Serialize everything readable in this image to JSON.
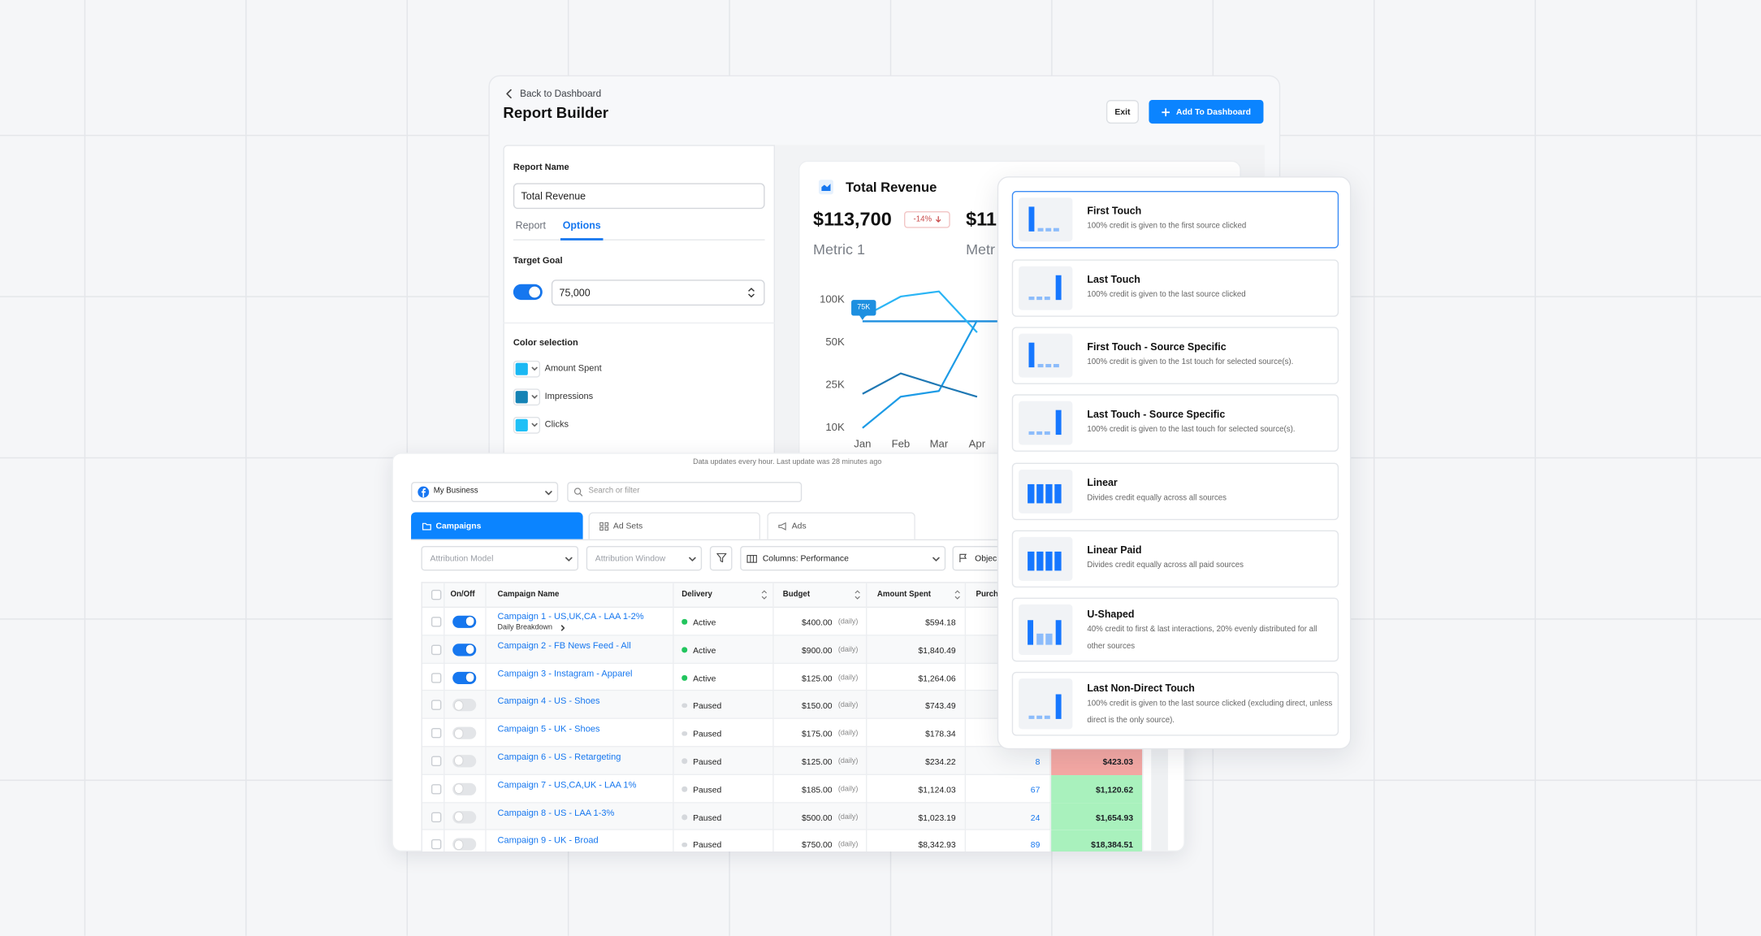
{
  "header": {
    "back_link": "Back to Dashboard",
    "title": "Report Builder",
    "exit_button": "Exit",
    "add_button": "Add To Dashboard"
  },
  "settings": {
    "report_name_label": "Report Name",
    "report_name_value": "Total Revenue",
    "tabs": [
      "Report",
      "Options"
    ],
    "active_tab": 1,
    "target_goal_label": "Target Goal",
    "target_goal_enabled": true,
    "target_goal_value": "75,000",
    "color_selection_label": "Color selection",
    "colors": [
      {
        "name": "Amount Spent",
        "color": "#1ab8f3"
      },
      {
        "name": "Impressions",
        "color": "#1583b5"
      },
      {
        "name": "Clicks",
        "color": "#20c0f6"
      }
    ]
  },
  "chart": {
    "title": "Total Revenue",
    "metrics": [
      {
        "value": "$113,700",
        "change": "-14%",
        "label": "Metric 1"
      },
      {
        "value": "$11",
        "label": "Metr"
      }
    ],
    "categories": [
      "Jan",
      "Feb",
      "Mar",
      "Apr"
    ],
    "yticks": [
      {
        "value": 10000,
        "label": "10K"
      },
      {
        "value": 25000,
        "label": "25K"
      },
      {
        "value": 50000,
        "label": "50K"
      },
      {
        "value": 100000,
        "label": "100K"
      }
    ],
    "target": {
      "value": 75000,
      "label": "75K",
      "color": "#1d8fe0"
    },
    "series": [
      {
        "color": "#2bb5f5",
        "values": [
          80000,
          104000,
          110000,
          62000
        ]
      },
      {
        "color": "#1d9be6",
        "values": [
          10000,
          21000,
          23000,
          76000
        ]
      },
      {
        "color": "#1f78b4",
        "values": [
          22000,
          32000,
          25000,
          21000
        ]
      }
    ]
  },
  "table": {
    "notice": "Data updates every hour. Last update was 28 minutes ago",
    "account": "My Business",
    "search_placeholder": "Search or filter",
    "tabs": [
      "Campaigns",
      "Ad Sets",
      "Ads"
    ],
    "active_tab": 0,
    "filters": [
      "Attribution Model",
      "Attribution Window",
      "Columns: Performance",
      "Objec"
    ],
    "columns": [
      "On/Off",
      "Campaign Name",
      "Delivery",
      "Budget",
      "Amount Spent",
      "Purch"
    ],
    "rows": [
      {
        "enabled": true,
        "name": "Campaign 1 - US,UK,CA - LAA 1-2%",
        "sub": "Daily Breakdown",
        "delivery": "Active",
        "budget": "$400.00",
        "period": "(daily)",
        "spent": "$594.18"
      },
      {
        "enabled": true,
        "name": "Campaign 2 - FB News Feed - All",
        "delivery": "Active",
        "budget": "$900.00",
        "period": "(daily)",
        "spent": "$1,840.49"
      },
      {
        "enabled": true,
        "name": "Campaign 3 - Instagram - Apparel",
        "delivery": "Active",
        "budget": "$125.00",
        "period": "(daily)",
        "spent": "$1,264.06"
      },
      {
        "enabled": false,
        "name": "Campaign 4 - US - Shoes",
        "delivery": "Paused",
        "budget": "$150.00",
        "period": "(daily)",
        "spent": "$743.49"
      },
      {
        "enabled": false,
        "name": "Campaign 5 - UK - Shoes",
        "delivery": "Paused",
        "budget": "$175.00",
        "period": "(daily)",
        "spent": "$178.34"
      },
      {
        "enabled": false,
        "name": "Campaign 6 - US - Retargeting",
        "delivery": "Paused",
        "budget": "$125.00",
        "period": "(daily)",
        "spent": "$234.22",
        "purchases": "8",
        "value": "$423.03",
        "highlight": "#f4a8a4"
      },
      {
        "enabled": false,
        "name": "Campaign 7 - US,CA,UK - LAA 1%",
        "delivery": "Paused",
        "budget": "$185.00",
        "period": "(daily)",
        "spent": "$1,124.03",
        "purchases": "67",
        "value": "$1,120.62",
        "highlight": "#a9f1bd"
      },
      {
        "enabled": false,
        "name": "Campaign 8 - US - LAA 1-3%",
        "delivery": "Paused",
        "budget": "$500.00",
        "period": "(daily)",
        "spent": "$1,023.19",
        "purchases": "24",
        "value": "$1,654.93",
        "highlight": "#a9f1bd"
      },
      {
        "enabled": false,
        "name": "Campaign 9 - UK - Broad",
        "delivery": "Paused",
        "budget": "$750.00",
        "period": "(daily)",
        "spent": "$8,342.93",
        "purchases": "89",
        "value": "$18,384.51",
        "highlight": "#a9f1bd"
      }
    ]
  },
  "attribution_models": {
    "selected": 0,
    "items": [
      {
        "title": "First Touch",
        "description": "100% credit is given to the first source clicked"
      },
      {
        "title": "Last Touch",
        "description": "100% credit is given to the last source clicked"
      },
      {
        "title": "First Touch - Source Specific",
        "description": "100% credit is given to the 1st touch for selected source(s)."
      },
      {
        "title": "Last Touch - Source Specific",
        "description": "100% credit is given to the last touch for selected source(s)."
      },
      {
        "title": "Linear",
        "description": "Divides credit equally across all sources"
      },
      {
        "title": "Linear Paid",
        "description": "Divides credit equally across all paid sources"
      },
      {
        "title": "U-Shaped",
        "description": "40% credit to first & last interactions, 20% evenly distributed for all other sources"
      },
      {
        "title": "Last Non-Direct Touch",
        "description": "100% credit is given to the last source clicked (excluding direct, unless direct is the only source)."
      }
    ]
  }
}
